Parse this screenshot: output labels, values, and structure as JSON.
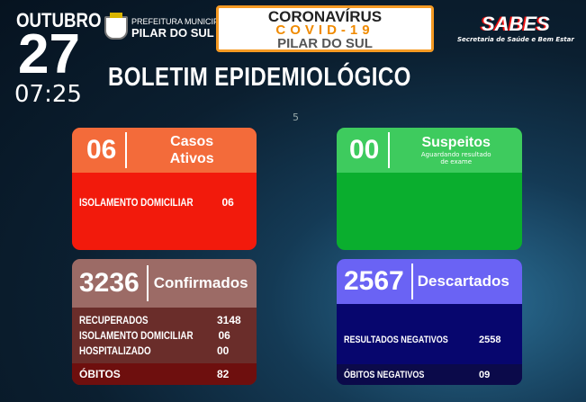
{
  "date": {
    "month": "OUTUBRO",
    "day": "27",
    "time": "07:25"
  },
  "prefeitura": {
    "line1": "PREFEITURA MUNICIPAL",
    "line2": "PILAR DO SUL"
  },
  "banner": {
    "line1": "CORONAVÍRUS",
    "line2": "COVID-19",
    "line3": "PILAR DO SUL"
  },
  "sabes": {
    "name": "SABES",
    "subtitle": "Secretaria de Saúde e Bem Estar"
  },
  "title": "BOLETIM EPIDEMIOLÓGICO",
  "page_marker": "5",
  "ativos": {
    "value": "06",
    "label1": "Casos",
    "label2": "Ativos",
    "rows": [
      {
        "label": "ISOLAMENTO DOMICILIAR",
        "value": "06"
      }
    ]
  },
  "suspeitos": {
    "value": "00",
    "label": "Suspeitos",
    "sub1": "Aguardando resultado",
    "sub2": "de exame"
  },
  "confirmados": {
    "value": "3236",
    "label": "Confirmados",
    "rows": [
      {
        "label": "RECUPERADOS",
        "value": "3148"
      },
      {
        "label": "ISOLAMENTO DOMICILIAR",
        "value": "06"
      },
      {
        "label": "HOSPITALIZADO",
        "value": "00"
      }
    ],
    "obitos": {
      "label": "ÓBITOS",
      "value": "82"
    }
  },
  "descartados": {
    "value": "2567",
    "label": "Descartados",
    "rows": [
      {
        "label": "RESULTADOS NEGATIVOS",
        "value": "2558"
      }
    ],
    "obitos": {
      "label": "ÓBITOS NEGATIVOS",
      "value": "09"
    }
  },
  "colors": {
    "ativos_header": "#f36b3a",
    "ativos_body": "#f21a0c",
    "suspeitos_header": "#3ecb5e",
    "suspeitos_body": "#0aae2e",
    "confirmados_header": "#9c6b66",
    "confirmados_body": "#6a2d2a",
    "descartados_header": "#6a63f4",
    "descartados_body": "#07066e",
    "banner_border": "#f59a23"
  }
}
